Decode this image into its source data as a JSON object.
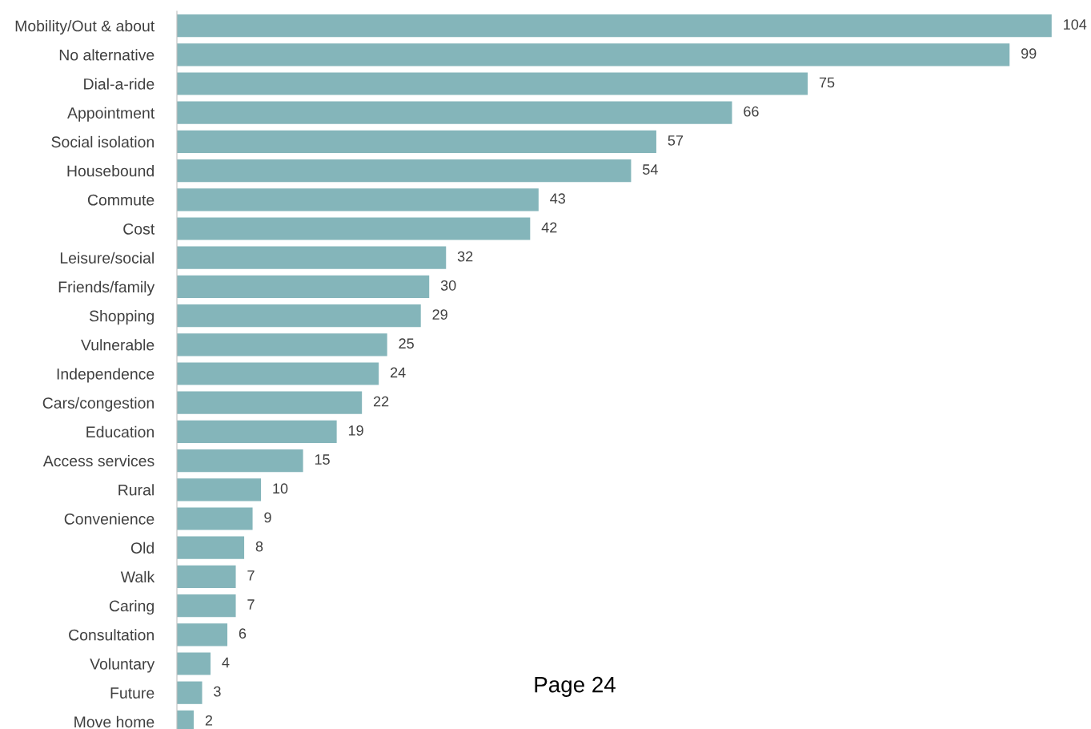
{
  "chart_data": {
    "type": "bar",
    "orientation": "horizontal",
    "categories": [
      "Mobility/Out & about",
      "No alternative",
      "Dial-a-ride",
      "Appointment",
      "Social isolation",
      "Housebound",
      "Commute",
      "Cost",
      "Leisure/social",
      "Friends/family",
      "Shopping",
      "Vulnerable",
      "Independence",
      "Cars/congestion",
      "Education",
      "Access services",
      "Rural",
      "Convenience",
      "Old",
      "Walk",
      "Caring",
      "Consultation",
      "Voluntary",
      "Future",
      "Move home"
    ],
    "values": [
      104,
      99,
      75,
      66,
      57,
      54,
      43,
      42,
      32,
      30,
      29,
      25,
      24,
      22,
      19,
      15,
      10,
      9,
      8,
      7,
      7,
      6,
      4,
      3,
      2
    ],
    "color": "#84b5ba",
    "data_labels": true,
    "tick_labels": "y",
    "grid": false,
    "legend": false,
    "annotations": [
      "Page 24"
    ]
  }
}
